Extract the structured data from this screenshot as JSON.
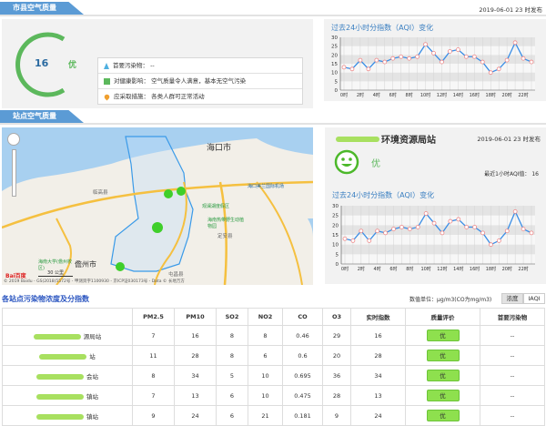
{
  "city_section": {
    "tab": "市县空气质量",
    "published": "2019-06-01 23 时发布",
    "aqi": "16",
    "level": "优",
    "rows": [
      {
        "icon": "warning-triangle-icon",
        "label": "首要污染物：",
        "value": "--"
      },
      {
        "icon": "health-cross-icon",
        "label": "对健康影响：",
        "value": "空气质量令人满意，基本无空气污染"
      },
      {
        "icon": "heart-icon",
        "label": "应采取措施：",
        "value": "各类人群可正常活动"
      }
    ],
    "chart_title": "过去24小时分指数（AQI）变化"
  },
  "station_section": {
    "tab": "站点空气质量",
    "station_name": "环境资源局站",
    "published": "2019-06-01 23 时发布",
    "level": "优",
    "recent_label": "最近1小时AQI值：",
    "recent_value": "16",
    "chart_title": "过去24小时分指数（AQI）变化"
  },
  "map": {
    "labels": {
      "haikou": "海口市",
      "danzhou": "儋州市",
      "lingao": "临高县",
      "dingan": "定安县",
      "tunchang": "屯昌县",
      "airport": "海口美兰国际机场",
      "guanlan": "观澜湖度假区",
      "zoo": "海南热带野生动植物园",
      "hainan_univ": "海南大学(儋州校区)",
      "chengmai": "澄迈县"
    },
    "scale": "30 公里",
    "logo": "Bai百度",
    "copyright": "© 2019 Baidu - GS(2018)5572号 - 甲测资字1100930 - 京ICP证030173号 - Data © 长地万方"
  },
  "table": {
    "title": "各站点污染物浓度及分指数",
    "unit": "数值单位：μg/m3(CO为mg/m3)",
    "toggle": [
      "浓度",
      "IAQI"
    ],
    "headers": [
      "",
      "PM2.5",
      "PM10",
      "SO2",
      "NO2",
      "CO",
      "O3",
      "实时指数",
      "质量评价",
      "首要污染物"
    ],
    "rows": [
      {
        "name": "源局站",
        "v": [
          "7",
          "16",
          "8",
          "8",
          "0.46",
          "29",
          "16"
        ],
        "level": "优",
        "primary": "--"
      },
      {
        "name": "站",
        "v": [
          "11",
          "28",
          "8",
          "6",
          "0.6",
          "20",
          "28"
        ],
        "level": "优",
        "primary": "--"
      },
      {
        "name": "会站",
        "v": [
          "8",
          "34",
          "5",
          "10",
          "0.695",
          "36",
          "34"
        ],
        "level": "优",
        "primary": "--"
      },
      {
        "name": "镇站",
        "v": [
          "7",
          "13",
          "6",
          "10",
          "0.475",
          "28",
          "13"
        ],
        "level": "优",
        "primary": "--"
      },
      {
        "name": "镇站",
        "v": [
          "9",
          "24",
          "6",
          "21",
          "0.181",
          "9",
          "24"
        ],
        "level": "优",
        "primary": "--"
      }
    ]
  },
  "colors": {
    "good": "#5cb85c",
    "line": "#3a8ee6",
    "accent": "#5b9bd5",
    "badge": "#8ee04e"
  },
  "chart_data": [
    {
      "type": "line",
      "title": "过去24小时分指数（AQI）变化",
      "x": [
        "0时",
        "1时",
        "2时",
        "3时",
        "4时",
        "5时",
        "6时",
        "7时",
        "8时",
        "9时",
        "10时",
        "11时",
        "12时",
        "13时",
        "14时",
        "15时",
        "16时",
        "17时",
        "18时",
        "19时",
        "20时",
        "21时",
        "22时",
        "23时"
      ],
      "xticks": [
        "0时",
        "2时",
        "4时",
        "6时",
        "8时",
        "10时",
        "12时",
        "14时",
        "16时",
        "18时",
        "20时",
        "22时"
      ],
      "values": [
        13,
        12,
        17,
        12,
        17,
        16,
        18,
        19,
        18,
        19,
        26,
        21,
        16,
        22,
        23,
        19,
        19,
        16,
        10,
        12,
        17,
        27,
        18,
        16
      ],
      "ylim": [
        0,
        30
      ],
      "yticks": [
        0,
        5,
        10,
        15,
        20,
        25,
        30
      ],
      "grid": true
    },
    {
      "type": "line",
      "title": "过去24小时分指数（AQI）变化",
      "x": [
        "0时",
        "1时",
        "2时",
        "3时",
        "4时",
        "5时",
        "6时",
        "7时",
        "8时",
        "9时",
        "10时",
        "11时",
        "12时",
        "13时",
        "14时",
        "15时",
        "16时",
        "17时",
        "18时",
        "19时",
        "20时",
        "21时",
        "22时",
        "23时"
      ],
      "xticks": [
        "0时",
        "2时",
        "4时",
        "6时",
        "8时",
        "10时",
        "12时",
        "14时",
        "16时",
        "18时",
        "20时",
        "22时"
      ],
      "values": [
        13,
        12,
        17,
        12,
        17,
        16,
        18,
        19,
        18,
        19,
        26,
        21,
        16,
        22,
        23,
        19,
        19,
        16,
        10,
        12,
        17,
        27,
        18,
        16
      ],
      "ylim": [
        0,
        30
      ],
      "yticks": [
        0,
        5,
        10,
        15,
        20,
        25,
        30
      ],
      "grid": true
    }
  ]
}
